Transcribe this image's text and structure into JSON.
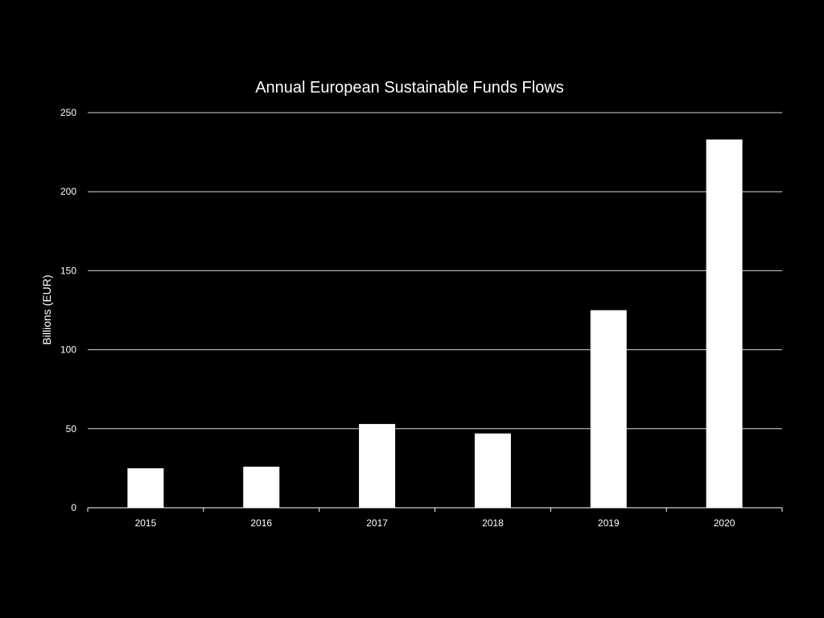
{
  "chart_data": {
    "type": "bar",
    "title": "Annual European Sustainable Funds Flows",
    "xlabel": "",
    "ylabel": "Billions (EUR)",
    "categories": [
      "2015",
      "2016",
      "2017",
      "2018",
      "2019",
      "2020"
    ],
    "values": [
      25,
      26,
      53,
      47,
      125,
      233
    ],
    "ylim": [
      0,
      250
    ],
    "yticks": [
      0,
      50,
      100,
      150,
      200,
      250
    ],
    "grid": true,
    "legend": "none",
    "colors": {
      "background": "#000000",
      "bar": "#ffffff",
      "grid": "#d9d9d9",
      "axis": "#ffffff",
      "text": "#ffffff"
    }
  }
}
